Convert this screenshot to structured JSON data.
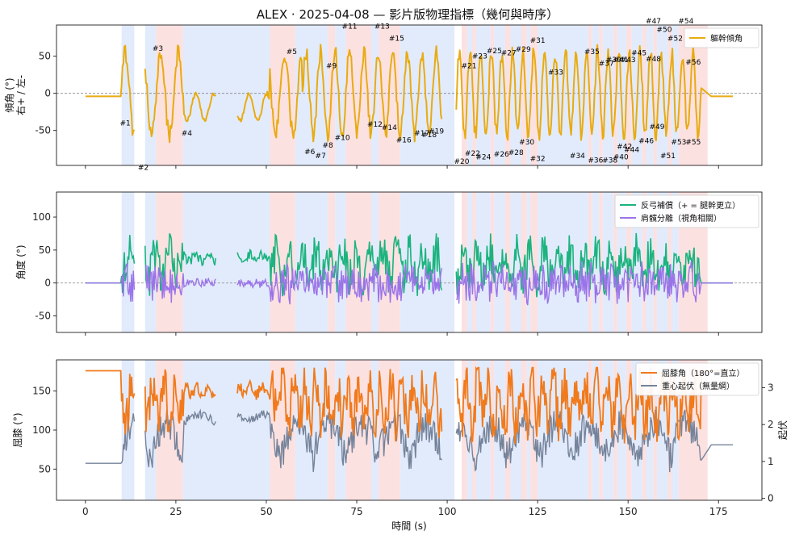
{
  "title": "ALEX · 2025-04-08 — 影片版物理指標（幾何與時序）",
  "colors": {
    "tilt": "#e8ab12",
    "arch": "#1bb37e",
    "sep": "#9b73e8",
    "knee": "#f07a1c",
    "com": "#75839a",
    "blue_band": "#dde8fb",
    "red_band": "#fbdcdc"
  },
  "chart_data": [
    {
      "type": "line",
      "name": "top",
      "ylabel": "傾角 (°)\n右+ / 左-",
      "ylim": [
        -97,
        92
      ],
      "yticks": [
        -50,
        0,
        50
      ],
      "xlim": [
        -8,
        187
      ],
      "zero_line": true,
      "legend": {
        "placement": "top-right",
        "entries": [
          "軀幹傾角"
        ]
      },
      "series": [
        {
          "name": "軀幹傾角",
          "color_key": "tilt"
        }
      ],
      "annotations": [
        {
          "label": "#1",
          "x": 11,
          "y": -43
        },
        {
          "label": "#2",
          "x": 16,
          "y": -103
        },
        {
          "label": "#3",
          "x": 20,
          "y": 57
        },
        {
          "label": "#4",
          "x": 28,
          "y": -57
        },
        {
          "label": "#5",
          "x": 57,
          "y": 53
        },
        {
          "label": "#6",
          "x": 62,
          "y": -82
        },
        {
          "label": "#7",
          "x": 65,
          "y": -87
        },
        {
          "label": "#8",
          "x": 67,
          "y": -73
        },
        {
          "label": "#9",
          "x": 68,
          "y": 34
        },
        {
          "label": "#10",
          "x": 71,
          "y": -63
        },
        {
          "label": "#11",
          "x": 73,
          "y": 87
        },
        {
          "label": "#12",
          "x": 80,
          "y": -45
        },
        {
          "label": "#13",
          "x": 82,
          "y": 87
        },
        {
          "label": "#14",
          "x": 84,
          "y": -49
        },
        {
          "label": "#15",
          "x": 86,
          "y": 71
        },
        {
          "label": "#16",
          "x": 88,
          "y": -66
        },
        {
          "label": "#17",
          "x": 93,
          "y": -57
        },
        {
          "label": "#18",
          "x": 95,
          "y": -59
        },
        {
          "label": "#19",
          "x": 97,
          "y": -54
        },
        {
          "label": "#20",
          "x": 104,
          "y": -95
        },
        {
          "label": "#21",
          "x": 106,
          "y": 34
        },
        {
          "label": "#22",
          "x": 107,
          "y": -84
        },
        {
          "label": "#23",
          "x": 109,
          "y": 47
        },
        {
          "label": "#24",
          "x": 110,
          "y": -89
        },
        {
          "label": "#25",
          "x": 113,
          "y": 54
        },
        {
          "label": "#26",
          "x": 115,
          "y": -85
        },
        {
          "label": "#27",
          "x": 117,
          "y": 51
        },
        {
          "label": "#28",
          "x": 119,
          "y": -83
        },
        {
          "label": "#29",
          "x": 121,
          "y": 56
        },
        {
          "label": "#30",
          "x": 122,
          "y": -69
        },
        {
          "label": "#31",
          "x": 125,
          "y": 68
        },
        {
          "label": "#32",
          "x": 125,
          "y": -91
        },
        {
          "label": "#33",
          "x": 130,
          "y": 25
        },
        {
          "label": "#34",
          "x": 136,
          "y": -87
        },
        {
          "label": "#35",
          "x": 140,
          "y": 53
        },
        {
          "label": "#36",
          "x": 141,
          "y": -93
        },
        {
          "label": "#37",
          "x": 144,
          "y": 37
        },
        {
          "label": "#38",
          "x": 145,
          "y": -93
        },
        {
          "label": "#39",
          "x": 146,
          "y": 42
        },
        {
          "label": "#40",
          "x": 148,
          "y": -89
        },
        {
          "label": "#41",
          "x": 148,
          "y": 42
        },
        {
          "label": "#42",
          "x": 149,
          "y": -75
        },
        {
          "label": "#43",
          "x": 150,
          "y": 42
        },
        {
          "label": "#44",
          "x": 151,
          "y": -79
        },
        {
          "label": "#45",
          "x": 153,
          "y": 51
        },
        {
          "label": "#46",
          "x": 155,
          "y": -67
        },
        {
          "label": "#47",
          "x": 157,
          "y": 100
        },
        {
          "label": "#48",
          "x": 157,
          "y": 43
        },
        {
          "label": "#49",
          "x": 158,
          "y": -48
        },
        {
          "label": "#50",
          "x": 160,
          "y": 83
        },
        {
          "label": "#51",
          "x": 161,
          "y": -87
        },
        {
          "label": "#52",
          "x": 163,
          "y": 71
        },
        {
          "label": "#53",
          "x": 164,
          "y": -69
        },
        {
          "label": "#54",
          "x": 166,
          "y": 100
        },
        {
          "label": "#55",
          "x": 168,
          "y": -69
        },
        {
          "label": "#56",
          "x": 168,
          "y": 39
        }
      ]
    },
    {
      "type": "line",
      "name": "middle",
      "ylabel": "角度 (°)",
      "ylim": [
        -75,
        138
      ],
      "yticks": [
        -50,
        0,
        50,
        100
      ],
      "xlim": [
        -8,
        187
      ],
      "zero_line": true,
      "legend": {
        "placement": "top-right",
        "entries": [
          "反弓補償（+ = 腿幹更立）",
          "肩髖分離（視角相關）"
        ]
      },
      "series": [
        {
          "name": "反弓補償（+ = 腿幹更立）",
          "color_key": "arch"
        },
        {
          "name": "肩髖分離（視角相關）",
          "color_key": "sep"
        }
      ]
    },
    {
      "type": "line",
      "name": "bottom",
      "ylabel": "屈膝 (°)",
      "ylim": [
        10,
        190
      ],
      "yticks": [
        50,
        100,
        150
      ],
      "y2label": "起伏",
      "y2lim": [
        -0.05,
        3.75
      ],
      "y2ticks": [
        0,
        1,
        2,
        3
      ],
      "xlabel": "時間 (s)",
      "xlim": [
        -8,
        187
      ],
      "xticks": [
        0,
        25,
        50,
        75,
        100,
        125,
        150,
        175
      ],
      "legend": {
        "placement": "top-right",
        "entries": [
          "屈膝角（180°=直立）",
          "重心起伏（無量綱）"
        ]
      },
      "series": [
        {
          "name": "屈膝角（180°=直立）",
          "color_key": "knee",
          "axis": "left"
        },
        {
          "name": "重心起伏（無量綱）",
          "color_key": "com",
          "axis": "right"
        }
      ]
    }
  ],
  "phases": [
    {
      "start": 10,
      "end": 13.5,
      "kind": "blue"
    },
    {
      "start": 16.5,
      "end": 19.5,
      "kind": "blue"
    },
    {
      "start": 19.5,
      "end": 27,
      "kind": "red"
    },
    {
      "start": 27,
      "end": 51,
      "kind": "blue"
    },
    {
      "start": 51,
      "end": 58,
      "kind": "red"
    },
    {
      "start": 58,
      "end": 67,
      "kind": "blue"
    },
    {
      "start": 67,
      "end": 69,
      "kind": "red"
    },
    {
      "start": 69,
      "end": 72,
      "kind": "blue"
    },
    {
      "start": 72,
      "end": 79,
      "kind": "red"
    },
    {
      "start": 79,
      "end": 81,
      "kind": "blue"
    },
    {
      "start": 81,
      "end": 87,
      "kind": "red"
    },
    {
      "start": 87,
      "end": 102,
      "kind": "blue"
    },
    {
      "start": 104,
      "end": 105.5,
      "kind": "red"
    },
    {
      "start": 105.5,
      "end": 107,
      "kind": "blue"
    },
    {
      "start": 107,
      "end": 108,
      "kind": "red"
    },
    {
      "start": 108,
      "end": 112,
      "kind": "blue"
    },
    {
      "start": 112,
      "end": 113,
      "kind": "red"
    },
    {
      "start": 113,
      "end": 116,
      "kind": "blue"
    },
    {
      "start": 116,
      "end": 117.5,
      "kind": "red"
    },
    {
      "start": 117.5,
      "end": 120.5,
      "kind": "blue"
    },
    {
      "start": 120.5,
      "end": 122,
      "kind": "red"
    },
    {
      "start": 122,
      "end": 123,
      "kind": "blue"
    },
    {
      "start": 123,
      "end": 125,
      "kind": "red"
    },
    {
      "start": 125,
      "end": 139,
      "kind": "blue"
    },
    {
      "start": 139,
      "end": 140,
      "kind": "red"
    },
    {
      "start": 140,
      "end": 142,
      "kind": "blue"
    },
    {
      "start": 142,
      "end": 143,
      "kind": "red"
    },
    {
      "start": 143,
      "end": 146,
      "kind": "blue"
    },
    {
      "start": 146,
      "end": 147,
      "kind": "red"
    },
    {
      "start": 147,
      "end": 149.5,
      "kind": "blue"
    },
    {
      "start": 149.5,
      "end": 151,
      "kind": "red"
    },
    {
      "start": 151,
      "end": 154,
      "kind": "blue"
    },
    {
      "start": 154,
      "end": 155,
      "kind": "red"
    },
    {
      "start": 155,
      "end": 157,
      "kind": "blue"
    },
    {
      "start": 157,
      "end": 158,
      "kind": "red"
    },
    {
      "start": 158,
      "end": 161,
      "kind": "blue"
    },
    {
      "start": 161,
      "end": 162,
      "kind": "red"
    },
    {
      "start": 162,
      "end": 164,
      "kind": "blue"
    },
    {
      "start": 164,
      "end": 172,
      "kind": "red"
    }
  ]
}
